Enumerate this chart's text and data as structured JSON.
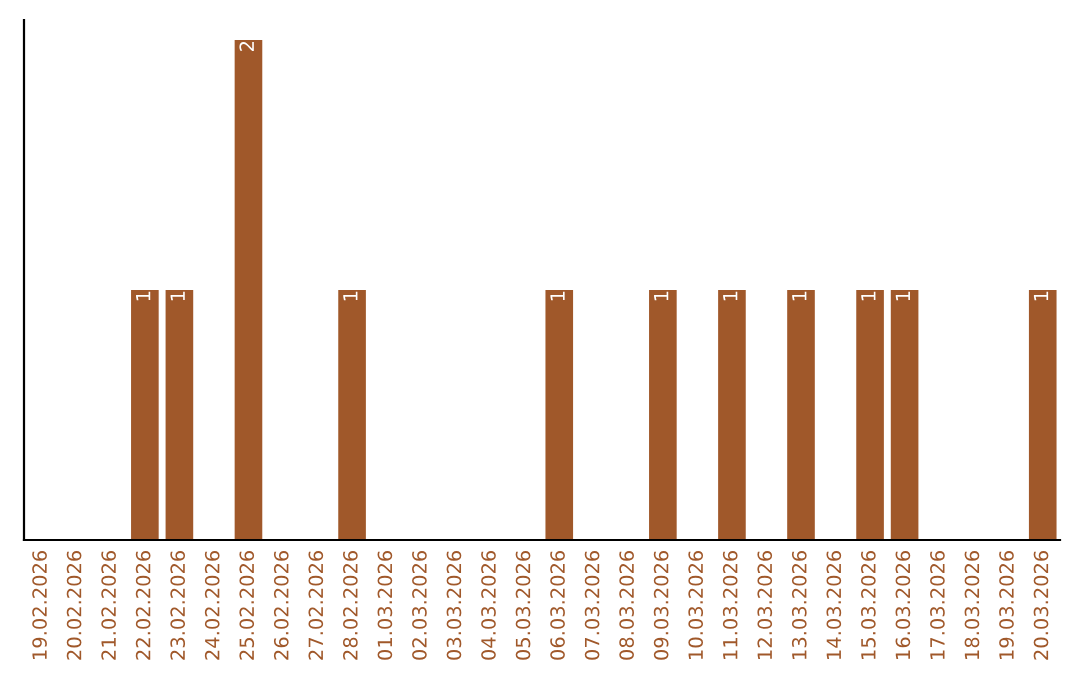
{
  "chart_data": {
    "type": "bar",
    "categories": [
      "19.02.2026",
      "20.02.2026",
      "21.02.2026",
      "22.02.2026",
      "23.02.2026",
      "24.02.2026",
      "25.02.2026",
      "26.02.2026",
      "27.02.2026",
      "28.02.2026",
      "01.03.2026",
      "02.03.2026",
      "03.03.2026",
      "04.03.2026",
      "05.03.2026",
      "06.03.2026",
      "07.03.2026",
      "08.03.2026",
      "09.03.2026",
      "10.03.2026",
      "11.03.2026",
      "12.03.2026",
      "13.03.2026",
      "14.03.2026",
      "15.03.2026",
      "16.03.2026",
      "17.03.2026",
      "18.03.2026",
      "19.03.2026",
      "20.03.2026"
    ],
    "values": [
      0,
      0,
      0,
      1,
      1,
      0,
      2,
      0,
      0,
      1,
      0,
      0,
      0,
      0,
      0,
      1,
      0,
      0,
      1,
      0,
      1,
      0,
      1,
      0,
      1,
      1,
      0,
      0,
      0,
      1
    ],
    "value_labels": [
      null,
      null,
      null,
      "1",
      "1",
      null,
      "2",
      null,
      null,
      "1",
      null,
      null,
      null,
      null,
      null,
      "1",
      null,
      null,
      "1",
      null,
      "1",
      null,
      "1",
      null,
      "1",
      "1",
      null,
      null,
      null,
      "1"
    ],
    "color": "#a0582a",
    "ylim": [
      0,
      2.08
    ],
    "tick_labels": "x",
    "grid": false,
    "legend": false
  }
}
